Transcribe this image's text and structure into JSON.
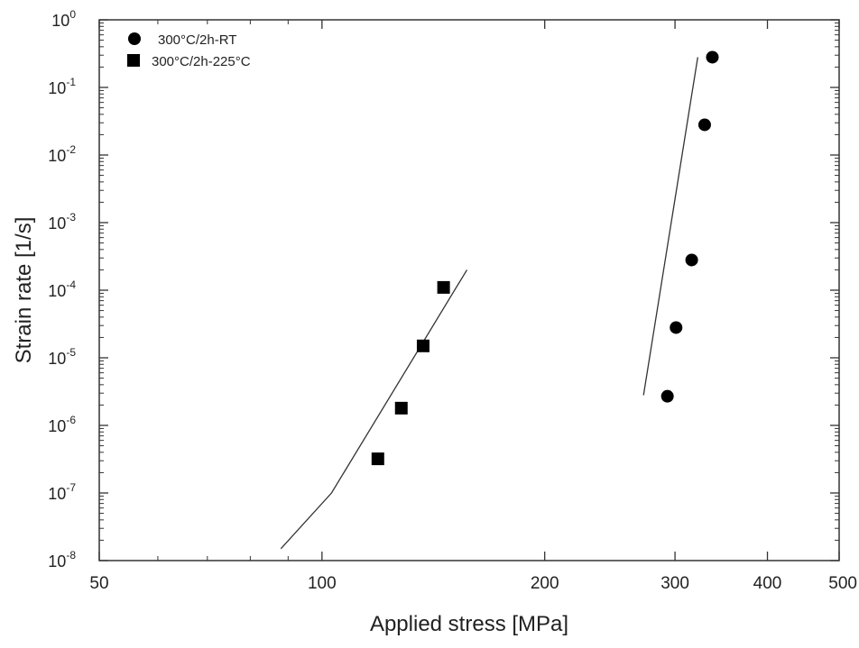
{
  "chart_data": {
    "type": "scatter",
    "xlabel": "Applied stress [MPa]",
    "ylabel": "Strain rate [1/s]",
    "x_scale": "log",
    "y_scale": "log",
    "xlim": [
      50,
      500
    ],
    "ylim": [
      1e-08,
      1
    ],
    "x_ticks": [
      {
        "value": 50,
        "label": "50"
      },
      {
        "value": 100,
        "label": "100"
      },
      {
        "value": 200,
        "label": "200"
      },
      {
        "value": 300,
        "label": "300"
      },
      {
        "value": 400,
        "label": "400"
      },
      {
        "value": 500,
        "label": "500"
      }
    ],
    "y_ticks": [
      {
        "value": 1e-08,
        "base": "10",
        "exp": "-8"
      },
      {
        "value": 1e-07,
        "base": "10",
        "exp": "-7"
      },
      {
        "value": 1e-06,
        "base": "10",
        "exp": "-6"
      },
      {
        "value": 1e-05,
        "base": "10",
        "exp": "-5"
      },
      {
        "value": 0.0001,
        "base": "10",
        "exp": "-4"
      },
      {
        "value": 0.001,
        "base": "10",
        "exp": "-3"
      },
      {
        "value": 0.01,
        "base": "10",
        "exp": "-2"
      },
      {
        "value": 0.1,
        "base": "10",
        "exp": "-1"
      },
      {
        "value": 1,
        "base": "10",
        "exp": "0"
      }
    ],
    "grid": false,
    "legend_position": "top-left",
    "series": [
      {
        "name": "300°C/2h-RT",
        "marker": "circle",
        "color": "#000000",
        "points": [
          {
            "x": 293,
            "y": 2.7e-06
          },
          {
            "x": 301,
            "y": 2.8e-05
          },
          {
            "x": 316,
            "y": 0.00028
          },
          {
            "x": 329,
            "y": 0.028
          },
          {
            "x": 337,
            "y": 0.28
          }
        ]
      },
      {
        "name": "300°C/2h-225°C",
        "marker": "square",
        "color": "#000000",
        "points": [
          {
            "x": 119,
            "y": 3.2e-07
          },
          {
            "x": 128,
            "y": 1.8e-06
          },
          {
            "x": 137,
            "y": 1.5e-05
          },
          {
            "x": 146,
            "y": 0.00011
          }
        ]
      }
    ],
    "fit_lines": [
      {
        "color": "#333333",
        "points": [
          {
            "x": 88,
            "y": 1.5e-08
          },
          {
            "x": 103,
            "y": 1e-07
          },
          {
            "x": 157,
            "y": 0.0002
          }
        ]
      },
      {
        "color": "#333333",
        "points": [
          {
            "x": 272,
            "y": 2.8e-06
          },
          {
            "x": 322,
            "y": 0.28
          }
        ]
      }
    ]
  }
}
